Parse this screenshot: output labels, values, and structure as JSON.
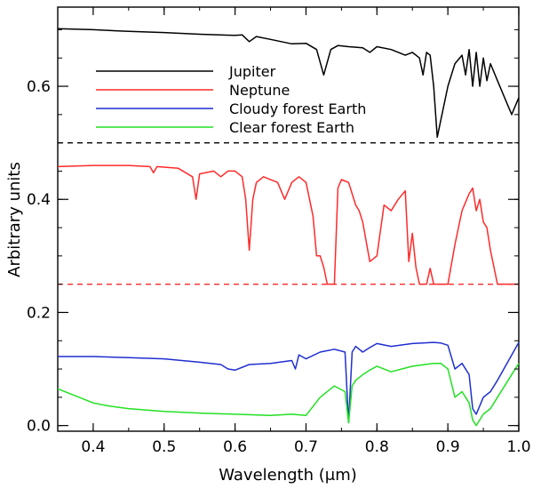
{
  "chart_data": {
    "type": "line",
    "title": "",
    "xlabel": "Wavelength (μm)",
    "ylabel": "Arbitrary units",
    "xlim": [
      0.35,
      1.0
    ],
    "ylim": [
      -0.01,
      0.74
    ],
    "xticks": [
      0.4,
      0.5,
      0.6,
      0.7,
      0.8,
      0.9,
      1.0
    ],
    "xtick_labels": [
      "0.4",
      "0.5",
      "0.6",
      "0.7",
      "0.8",
      "0.9",
      "1.0"
    ],
    "yticks": [
      0.0,
      0.2,
      0.4,
      0.6
    ],
    "ytick_labels": [
      "0.0",
      "0.2",
      "0.4",
      "0.6"
    ],
    "grid": false,
    "legend_position": "upper-left inside",
    "reference_lines": [
      {
        "y": 0.5,
        "style": "dashed",
        "color": "#000000"
      },
      {
        "y": 0.25,
        "style": "dashed",
        "color": "#ff2a2a"
      }
    ],
    "series": [
      {
        "name": "Jupiter",
        "color": "#000000",
        "x": [
          0.35,
          0.4,
          0.45,
          0.5,
          0.55,
          0.6,
          0.61,
          0.62,
          0.63,
          0.65,
          0.68,
          0.7,
          0.715,
          0.725,
          0.735,
          0.745,
          0.76,
          0.78,
          0.79,
          0.8,
          0.82,
          0.84,
          0.85,
          0.86,
          0.865,
          0.87,
          0.875,
          0.88,
          0.885,
          0.89,
          0.9,
          0.91,
          0.92,
          0.925,
          0.93,
          0.935,
          0.94,
          0.945,
          0.95,
          0.955,
          0.96,
          0.97,
          0.98,
          0.99,
          1.0
        ],
        "y": [
          0.702,
          0.7,
          0.697,
          0.695,
          0.692,
          0.69,
          0.691,
          0.679,
          0.688,
          0.683,
          0.675,
          0.676,
          0.665,
          0.62,
          0.665,
          0.672,
          0.67,
          0.668,
          0.66,
          0.67,
          0.665,
          0.655,
          0.66,
          0.65,
          0.62,
          0.66,
          0.655,
          0.6,
          0.51,
          0.54,
          0.6,
          0.64,
          0.655,
          0.62,
          0.665,
          0.6,
          0.66,
          0.6,
          0.65,
          0.61,
          0.64,
          0.61,
          0.58,
          0.55,
          0.58
        ]
      },
      {
        "name": "Neptune",
        "color": "#ff2a2a",
        "x": [
          0.35,
          0.4,
          0.45,
          0.48,
          0.485,
          0.49,
          0.52,
          0.54,
          0.545,
          0.55,
          0.57,
          0.58,
          0.59,
          0.6,
          0.61,
          0.615,
          0.62,
          0.625,
          0.63,
          0.64,
          0.66,
          0.67,
          0.68,
          0.69,
          0.7,
          0.71,
          0.715,
          0.72,
          0.725,
          0.73,
          0.74,
          0.745,
          0.75,
          0.76,
          0.77,
          0.775,
          0.78,
          0.79,
          0.8,
          0.81,
          0.82,
          0.83,
          0.84,
          0.845,
          0.85,
          0.855,
          0.86,
          0.87,
          0.875,
          0.88,
          0.89,
          0.9,
          0.91,
          0.92,
          0.93,
          0.935,
          0.94,
          0.945,
          0.95,
          0.955,
          0.96,
          0.97,
          1.0
        ],
        "y": [
          0.458,
          0.46,
          0.46,
          0.458,
          0.447,
          0.458,
          0.455,
          0.44,
          0.4,
          0.445,
          0.45,
          0.44,
          0.45,
          0.45,
          0.44,
          0.4,
          0.31,
          0.4,
          0.43,
          0.44,
          0.43,
          0.4,
          0.43,
          0.44,
          0.43,
          0.37,
          0.3,
          0.3,
          0.28,
          0.25,
          0.25,
          0.42,
          0.435,
          0.43,
          0.39,
          0.38,
          0.36,
          0.29,
          0.3,
          0.39,
          0.38,
          0.4,
          0.415,
          0.29,
          0.34,
          0.28,
          0.25,
          0.25,
          0.278,
          0.25,
          0.25,
          0.25,
          0.32,
          0.38,
          0.41,
          0.42,
          0.38,
          0.4,
          0.36,
          0.35,
          0.31,
          0.25,
          0.25
        ]
      },
      {
        "name": "Cloudy forest Earth",
        "color": "#1f2fd0",
        "x": [
          0.35,
          0.4,
          0.45,
          0.5,
          0.55,
          0.58,
          0.59,
          0.6,
          0.62,
          0.65,
          0.68,
          0.685,
          0.69,
          0.7,
          0.72,
          0.74,
          0.755,
          0.76,
          0.765,
          0.77,
          0.78,
          0.79,
          0.8,
          0.82,
          0.85,
          0.88,
          0.89,
          0.9,
          0.91,
          0.92,
          0.93,
          0.935,
          0.94,
          0.95,
          0.96,
          0.97,
          1.0
        ],
        "y": [
          0.122,
          0.122,
          0.12,
          0.118,
          0.112,
          0.108,
          0.1,
          0.098,
          0.108,
          0.11,
          0.115,
          0.1,
          0.125,
          0.118,
          0.13,
          0.135,
          0.13,
          0.005,
          0.13,
          0.14,
          0.13,
          0.138,
          0.145,
          0.14,
          0.145,
          0.147,
          0.146,
          0.142,
          0.1,
          0.11,
          0.09,
          0.03,
          0.02,
          0.05,
          0.06,
          0.08,
          0.147
        ]
      },
      {
        "name": "Clear forest Earth",
        "color": "#22e022",
        "x": [
          0.35,
          0.38,
          0.4,
          0.42,
          0.45,
          0.5,
          0.55,
          0.6,
          0.65,
          0.68,
          0.7,
          0.72,
          0.74,
          0.755,
          0.76,
          0.765,
          0.77,
          0.78,
          0.79,
          0.8,
          0.82,
          0.85,
          0.88,
          0.89,
          0.9,
          0.91,
          0.92,
          0.93,
          0.935,
          0.94,
          0.95,
          0.96,
          0.97,
          1.0
        ],
        "y": [
          0.065,
          0.05,
          0.04,
          0.035,
          0.03,
          0.025,
          0.022,
          0.02,
          0.018,
          0.02,
          0.018,
          0.05,
          0.07,
          0.06,
          0.005,
          0.07,
          0.08,
          0.09,
          0.098,
          0.105,
          0.095,
          0.105,
          0.11,
          0.11,
          0.1,
          0.05,
          0.06,
          0.04,
          0.01,
          0.0,
          0.02,
          0.03,
          0.05,
          0.11
        ]
      }
    ]
  }
}
